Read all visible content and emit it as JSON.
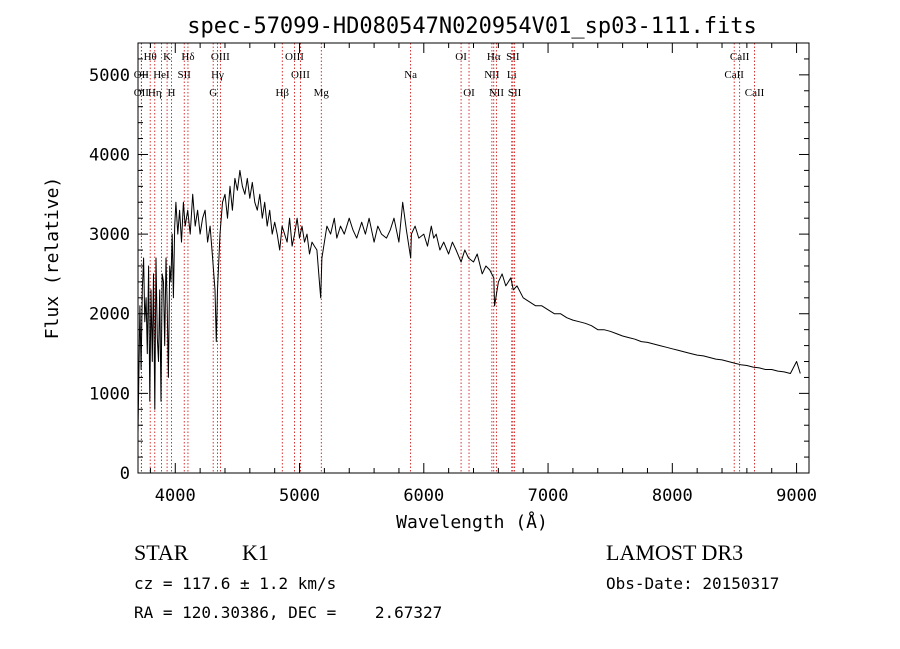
{
  "chart_data": {
    "type": "line",
    "title": "spec-57099-HD080547N020954V01_sp03-111.fits",
    "xlabel": "Wavelength (Å)",
    "ylabel": "Flux (relative)",
    "xlim": [
      3700,
      9100
    ],
    "ylim": [
      0,
      5400
    ],
    "x_ticks": [
      4000,
      5000,
      6000,
      7000,
      8000,
      9000
    ],
    "y_ticks": [
      0,
      1000,
      2000,
      3000,
      4000,
      5000
    ],
    "grid": false,
    "colors": {
      "spectrum": "#000000",
      "lines": "#cc0000",
      "axes": "#000000"
    },
    "series": [
      {
        "x": [
          3700,
          3715,
          3725,
          3735,
          3745,
          3755,
          3765,
          3775,
          3785,
          3795,
          3805,
          3815,
          3825,
          3835,
          3845,
          3855,
          3865,
          3875,
          3885,
          3895,
          3905,
          3915,
          3925,
          3935,
          3945,
          3955,
          3965,
          3975,
          3985,
          3995,
          4005,
          4020,
          4035,
          4050,
          4065,
          4080,
          4100,
          4120,
          4140,
          4160,
          4180,
          4200,
          4220,
          4240,
          4260,
          4280,
          4300,
          4310,
          4320,
          4330,
          4340,
          4360,
          4380,
          4400,
          4420,
          4440,
          4460,
          4480,
          4500,
          4520,
          4540,
          4560,
          4580,
          4600,
          4620,
          4640,
          4660,
          4680,
          4700,
          4720,
          4740,
          4760,
          4780,
          4800,
          4820,
          4840,
          4860,
          4880,
          4900,
          4920,
          4940,
          4960,
          4980,
          5000,
          5020,
          5040,
          5060,
          5080,
          5100,
          5120,
          5140,
          5160,
          5170,
          5180,
          5200,
          5220,
          5250,
          5280,
          5300,
          5330,
          5360,
          5400,
          5430,
          5460,
          5500,
          5530,
          5560,
          5600,
          5630,
          5660,
          5700,
          5730,
          5760,
          5800,
          5830,
          5860,
          5895,
          5900,
          5930,
          5960,
          6000,
          6030,
          6060,
          6080,
          6100,
          6130,
          6160,
          6200,
          6230,
          6260,
          6300,
          6330,
          6360,
          6400,
          6430,
          6470,
          6500,
          6530,
          6563,
          6570,
          6600,
          6630,
          6660,
          6700,
          6720,
          6750,
          6800,
          6850,
          6900,
          6950,
          7000,
          7050,
          7100,
          7150,
          7200,
          7250,
          7300,
          7350,
          7400,
          7450,
          7500,
          7550,
          7600,
          7650,
          7700,
          7750,
          7800,
          7850,
          7900,
          7950,
          8000,
          8050,
          8100,
          8150,
          8200,
          8250,
          8300,
          8350,
          8400,
          8450,
          8500,
          8550,
          8600,
          8650,
          8700,
          8750,
          8800,
          8850,
          8900,
          8950,
          9000,
          9030
        ],
        "y": [
          500,
          2100,
          1300,
          2300,
          2700,
          1900,
          2200,
          1500,
          2600,
          900,
          2300,
          1400,
          2500,
          800,
          2700,
          1700,
          1400,
          2300,
          900,
          2500,
          2400,
          1600,
          2700,
          2100,
          1200,
          2600,
          2400,
          3000,
          2200,
          3100,
          3400,
          3000,
          3300,
          2900,
          3400,
          3100,
          3300,
          3000,
          3500,
          3100,
          3300,
          3000,
          3200,
          3300,
          2900,
          3100,
          2700,
          2500,
          2300,
          1650,
          2300,
          3000,
          3400,
          3500,
          3200,
          3600,
          3300,
          3700,
          3550,
          3800,
          3600,
          3500,
          3700,
          3450,
          3650,
          3400,
          3300,
          3500,
          3200,
          3400,
          3100,
          3300,
          3000,
          3150,
          3000,
          2800,
          3100,
          3000,
          2900,
          3200,
          2850,
          3000,
          3200,
          2950,
          3100,
          2900,
          3000,
          2750,
          2900,
          2850,
          2800,
          2400,
          2200,
          2700,
          2900,
          3100,
          3000,
          3200,
          2950,
          3100,
          3000,
          3200,
          3050,
          2950,
          3150,
          3000,
          3200,
          2900,
          3100,
          3000,
          2950,
          3050,
          3200,
          2900,
          3400,
          3050,
          2700,
          3000,
          3100,
          2950,
          3000,
          2850,
          3100,
          2950,
          3000,
          2800,
          2900,
          2750,
          2900,
          2800,
          2650,
          2800,
          2700,
          2650,
          2750,
          2500,
          2600,
          2550,
          2450,
          2100,
          2400,
          2500,
          2350,
          2450,
          2300,
          2350,
          2200,
          2150,
          2100,
          2100,
          2050,
          2000,
          2000,
          1950,
          1920,
          1900,
          1880,
          1850,
          1800,
          1800,
          1780,
          1750,
          1720,
          1700,
          1680,
          1650,
          1640,
          1620,
          1600,
          1580,
          1560,
          1540,
          1520,
          1500,
          1480,
          1470,
          1450,
          1430,
          1420,
          1400,
          1380,
          1360,
          1350,
          1330,
          1320,
          1300,
          1300,
          1280,
          1270,
          1250,
          1400,
          1250
        ]
      }
    ],
    "line_ids": [
      {
        "label": "OII",
        "wave": 3727,
        "row": 1
      },
      {
        "label": "Hθ",
        "wave": 3798,
        "row": 0
      },
      {
        "label": "OII",
        "wave": 3727,
        "row": 2
      },
      {
        "label": "Hη",
        "wave": 3835,
        "row": 2
      },
      {
        "label": "HeI",
        "wave": 3889,
        "row": 1
      },
      {
        "label": "K",
        "wave": 3934,
        "row": 0
      },
      {
        "label": "H",
        "wave": 3969,
        "row": 2
      },
      {
        "label": "SII",
        "wave": 4072,
        "row": 1
      },
      {
        "label": "Hδ",
        "wave": 4102,
        "row": 0
      },
      {
        "label": "OIII",
        "wave": 4363,
        "row": 0
      },
      {
        "label": "Hγ",
        "wave": 4340,
        "row": 1
      },
      {
        "label": "G",
        "wave": 4305,
        "row": 2
      },
      {
        "label": "Hβ",
        "wave": 4861,
        "row": 2
      },
      {
        "label": "OIII",
        "wave": 4959,
        "row": 0
      },
      {
        "label": "OIII",
        "wave": 5007,
        "row": 1
      },
      {
        "label": "Mg",
        "wave": 5175,
        "row": 2
      },
      {
        "label": "Na",
        "wave": 5894,
        "row": 1
      },
      {
        "label": "OI",
        "wave": 6300,
        "row": 0
      },
      {
        "label": "OI",
        "wave": 6364,
        "row": 2
      },
      {
        "label": "Hα",
        "wave": 6563,
        "row": 0
      },
      {
        "label": "NII",
        "wave": 6548,
        "row": 1
      },
      {
        "label": "NII",
        "wave": 6584,
        "row": 2
      },
      {
        "label": "SII",
        "wave": 6717,
        "row": 0
      },
      {
        "label": "Li",
        "wave": 6708,
        "row": 1
      },
      {
        "label": "SII",
        "wave": 6731,
        "row": 2
      },
      {
        "label": "CaII",
        "wave": 8542,
        "row": 0
      },
      {
        "label": "CaII",
        "wave": 8498,
        "row": 1
      },
      {
        "label": "CaII",
        "wave": 8662,
        "row": 2
      }
    ]
  },
  "info": {
    "class_label": "STAR",
    "subclass_label": "K1",
    "survey": "LAMOST DR3",
    "cz": "cz = 117.6 ± 1.2 km/s",
    "obs_date": "Obs-Date: 20150317",
    "coords": "RA = 120.30386, DEC =    2.67327"
  }
}
